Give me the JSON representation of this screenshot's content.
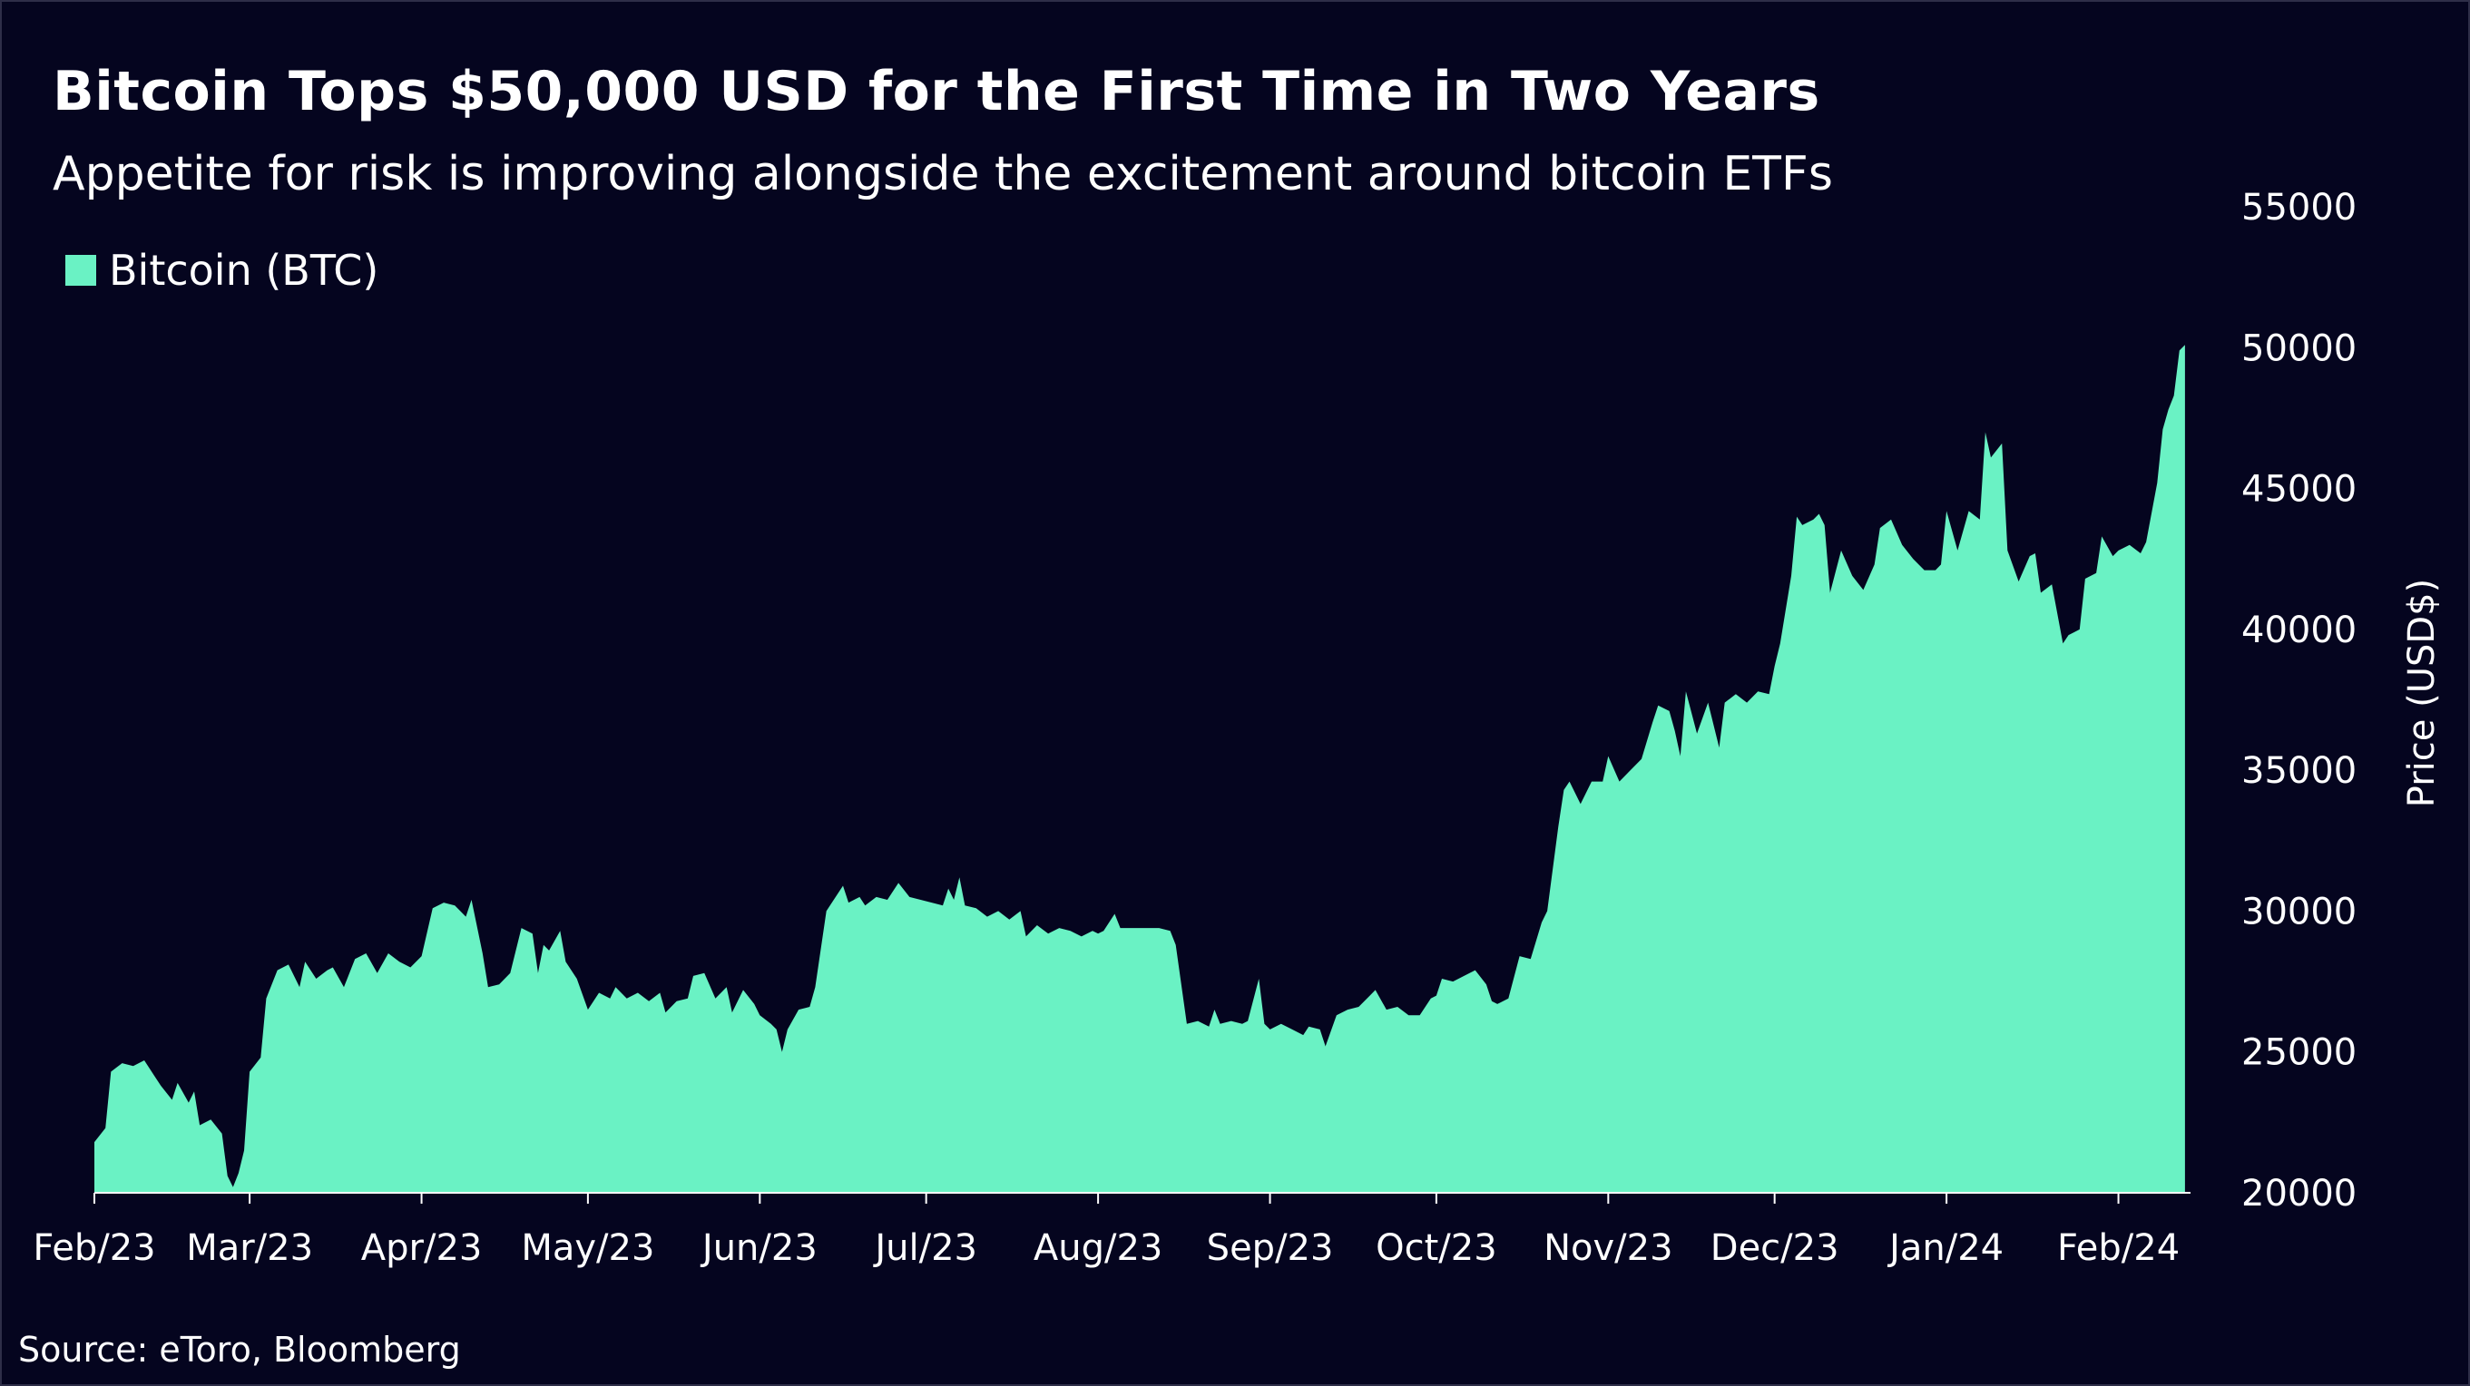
{
  "header": {
    "title": "Bitcoin Tops $50,000 USD for the First Time in Two Years",
    "subtitle": "Appetite for risk is improving alongside the excitement around bitcoin ETFs"
  },
  "footer": {
    "source": "Source: eToro, Bloomberg"
  },
  "colors": {
    "background": "#05051f",
    "area_fill": "#6af2c4",
    "axis": "#ffffff",
    "text": "#ffffff"
  },
  "chart_data": {
    "type": "area",
    "title": "Bitcoin Tops $50,000 USD for the First Time in Two Years",
    "subtitle": "Appetite for risk is improving alongside the excitement around bitcoin ETFs",
    "xlabel": "",
    "ylabel": "Price (USD$)",
    "y_axis_position": "right",
    "ylim": [
      20000,
      55000
    ],
    "y_ticks": [
      20000,
      25000,
      30000,
      35000,
      40000,
      45000,
      50000,
      55000
    ],
    "x_range": [
      "2023-02-01",
      "2024-02-14"
    ],
    "x_ticks": [
      {
        "date": "2023-02-01",
        "label": "Feb/23"
      },
      {
        "date": "2023-03-01",
        "label": "Mar/23"
      },
      {
        "date": "2023-04-01",
        "label": "Apr/23"
      },
      {
        "date": "2023-05-01",
        "label": "May/23"
      },
      {
        "date": "2023-06-01",
        "label": "Jun/23"
      },
      {
        "date": "2023-07-01",
        "label": "Jul/23"
      },
      {
        "date": "2023-08-01",
        "label": "Aug/23"
      },
      {
        "date": "2023-09-01",
        "label": "Sep/23"
      },
      {
        "date": "2023-10-01",
        "label": "Oct/23"
      },
      {
        "date": "2023-11-01",
        "label": "Nov/23"
      },
      {
        "date": "2023-12-01",
        "label": "Dec/23"
      },
      {
        "date": "2024-01-01",
        "label": "Jan/24"
      },
      {
        "date": "2024-02-01",
        "label": "Feb/24"
      }
    ],
    "legend": {
      "position": "top-left",
      "entries": [
        "Bitcoin (BTC)"
      ]
    },
    "grid": false,
    "series": [
      {
        "name": "Bitcoin (BTC)",
        "points": [
          [
            "2023-02-01",
            21800
          ],
          [
            "2023-02-03",
            22300
          ],
          [
            "2023-02-04",
            24300
          ],
          [
            "2023-02-06",
            24600
          ],
          [
            "2023-02-08",
            24500
          ],
          [
            "2023-02-10",
            24700
          ],
          [
            "2023-02-12",
            24100
          ],
          [
            "2023-02-13",
            23800
          ],
          [
            "2023-02-15",
            23300
          ],
          [
            "2023-02-16",
            23900
          ],
          [
            "2023-02-18",
            23200
          ],
          [
            "2023-02-19",
            23600
          ],
          [
            "2023-02-20",
            22400
          ],
          [
            "2023-02-22",
            22600
          ],
          [
            "2023-02-24",
            22100
          ],
          [
            "2023-02-25",
            20600
          ],
          [
            "2023-02-26",
            20200
          ],
          [
            "2023-02-27",
            20700
          ],
          [
            "2023-02-28",
            21500
          ],
          [
            "2023-03-01",
            24300
          ],
          [
            "2023-03-03",
            24800
          ],
          [
            "2023-03-04",
            26900
          ],
          [
            "2023-03-06",
            27900
          ],
          [
            "2023-03-08",
            28100
          ],
          [
            "2023-03-10",
            27300
          ],
          [
            "2023-03-11",
            28200
          ],
          [
            "2023-03-13",
            27600
          ],
          [
            "2023-03-15",
            27900
          ],
          [
            "2023-03-16",
            28000
          ],
          [
            "2023-03-18",
            27300
          ],
          [
            "2023-03-20",
            28300
          ],
          [
            "2023-03-22",
            28500
          ],
          [
            "2023-03-24",
            27800
          ],
          [
            "2023-03-26",
            28500
          ],
          [
            "2023-03-28",
            28200
          ],
          [
            "2023-03-30",
            28000
          ],
          [
            "2023-04-01",
            28400
          ],
          [
            "2023-04-03",
            30100
          ],
          [
            "2023-04-05",
            30300
          ],
          [
            "2023-04-07",
            30200
          ],
          [
            "2023-04-09",
            29800
          ],
          [
            "2023-04-10",
            30400
          ],
          [
            "2023-04-12",
            28500
          ],
          [
            "2023-04-13",
            27300
          ],
          [
            "2023-04-15",
            27400
          ],
          [
            "2023-04-17",
            27800
          ],
          [
            "2023-04-19",
            29400
          ],
          [
            "2023-04-21",
            29200
          ],
          [
            "2023-04-22",
            27800
          ],
          [
            "2023-04-23",
            28800
          ],
          [
            "2023-04-24",
            28600
          ],
          [
            "2023-04-26",
            29300
          ],
          [
            "2023-04-27",
            28200
          ],
          [
            "2023-04-29",
            27600
          ],
          [
            "2023-05-01",
            26500
          ],
          [
            "2023-05-03",
            27100
          ],
          [
            "2023-05-05",
            26900
          ],
          [
            "2023-05-06",
            27300
          ],
          [
            "2023-05-08",
            26900
          ],
          [
            "2023-05-10",
            27100
          ],
          [
            "2023-05-12",
            26800
          ],
          [
            "2023-05-14",
            27100
          ],
          [
            "2023-05-15",
            26400
          ],
          [
            "2023-05-17",
            26800
          ],
          [
            "2023-05-19",
            26900
          ],
          [
            "2023-05-20",
            27700
          ],
          [
            "2023-05-22",
            27800
          ],
          [
            "2023-05-24",
            26900
          ],
          [
            "2023-05-26",
            27300
          ],
          [
            "2023-05-27",
            26400
          ],
          [
            "2023-05-29",
            27200
          ],
          [
            "2023-05-31",
            26700
          ],
          [
            "2023-06-01",
            26300
          ],
          [
            "2023-06-03",
            26000
          ],
          [
            "2023-06-04",
            25800
          ],
          [
            "2023-06-05",
            25000
          ],
          [
            "2023-06-06",
            25800
          ],
          [
            "2023-06-08",
            26500
          ],
          [
            "2023-06-10",
            26600
          ],
          [
            "2023-06-11",
            27300
          ],
          [
            "2023-06-13",
            30000
          ],
          [
            "2023-06-15",
            30600
          ],
          [
            "2023-06-16",
            30900
          ],
          [
            "2023-06-17",
            30300
          ],
          [
            "2023-06-19",
            30500
          ],
          [
            "2023-06-20",
            30200
          ],
          [
            "2023-06-22",
            30500
          ],
          [
            "2023-06-24",
            30400
          ],
          [
            "2023-06-26",
            31000
          ],
          [
            "2023-06-28",
            30500
          ],
          [
            "2023-06-30",
            30400
          ],
          [
            "2023-07-02",
            30300
          ],
          [
            "2023-07-04",
            30200
          ],
          [
            "2023-07-05",
            30800
          ],
          [
            "2023-07-06",
            30400
          ],
          [
            "2023-07-07",
            31200
          ],
          [
            "2023-07-08",
            30200
          ],
          [
            "2023-07-10",
            30100
          ],
          [
            "2023-07-12",
            29800
          ],
          [
            "2023-07-14",
            30000
          ],
          [
            "2023-07-16",
            29700
          ],
          [
            "2023-07-18",
            30000
          ],
          [
            "2023-07-19",
            29100
          ],
          [
            "2023-07-21",
            29500
          ],
          [
            "2023-07-23",
            29200
          ],
          [
            "2023-07-25",
            29400
          ],
          [
            "2023-07-27",
            29300
          ],
          [
            "2023-07-29",
            29100
          ],
          [
            "2023-07-31",
            29300
          ],
          [
            "2023-08-01",
            29200
          ],
          [
            "2023-08-02",
            29300
          ],
          [
            "2023-08-04",
            29900
          ],
          [
            "2023-08-05",
            29400
          ],
          [
            "2023-08-07",
            29400
          ],
          [
            "2023-08-09",
            29400
          ],
          [
            "2023-08-12",
            29400
          ],
          [
            "2023-08-14",
            29300
          ],
          [
            "2023-08-15",
            28800
          ],
          [
            "2023-08-17",
            26000
          ],
          [
            "2023-08-19",
            26100
          ],
          [
            "2023-08-21",
            25900
          ],
          [
            "2023-08-22",
            26500
          ],
          [
            "2023-08-23",
            26000
          ],
          [
            "2023-08-25",
            26100
          ],
          [
            "2023-08-27",
            26000
          ],
          [
            "2023-08-28",
            26100
          ],
          [
            "2023-08-30",
            27600
          ],
          [
            "2023-08-31",
            26000
          ],
          [
            "2023-09-01",
            25800
          ],
          [
            "2023-09-03",
            26000
          ],
          [
            "2023-09-05",
            25800
          ],
          [
            "2023-09-07",
            25600
          ],
          [
            "2023-09-08",
            25900
          ],
          [
            "2023-09-10",
            25800
          ],
          [
            "2023-09-11",
            25200
          ],
          [
            "2023-09-13",
            26300
          ],
          [
            "2023-09-15",
            26500
          ],
          [
            "2023-09-17",
            26600
          ],
          [
            "2023-09-19",
            27000
          ],
          [
            "2023-09-20",
            27200
          ],
          [
            "2023-09-22",
            26500
          ],
          [
            "2023-09-24",
            26600
          ],
          [
            "2023-09-26",
            26300
          ],
          [
            "2023-09-28",
            26300
          ],
          [
            "2023-09-30",
            26900
          ],
          [
            "2023-10-01",
            27000
          ],
          [
            "2023-10-02",
            27600
          ],
          [
            "2023-10-04",
            27500
          ],
          [
            "2023-10-06",
            27700
          ],
          [
            "2023-10-08",
            27900
          ],
          [
            "2023-10-10",
            27400
          ],
          [
            "2023-10-11",
            26800
          ],
          [
            "2023-10-12",
            26700
          ],
          [
            "2023-10-14",
            26900
          ],
          [
            "2023-10-16",
            28400
          ],
          [
            "2023-10-18",
            28300
          ],
          [
            "2023-10-20",
            29600
          ],
          [
            "2023-10-21",
            30000
          ],
          [
            "2023-10-23",
            33000
          ],
          [
            "2023-10-24",
            34300
          ],
          [
            "2023-10-25",
            34600
          ],
          [
            "2023-10-27",
            33800
          ],
          [
            "2023-10-29",
            34600
          ],
          [
            "2023-10-31",
            34600
          ],
          [
            "2023-11-01",
            35500
          ],
          [
            "2023-11-03",
            34600
          ],
          [
            "2023-11-05",
            35000
          ],
          [
            "2023-11-07",
            35400
          ],
          [
            "2023-11-09",
            36700
          ],
          [
            "2023-11-10",
            37300
          ],
          [
            "2023-11-12",
            37100
          ],
          [
            "2023-11-13",
            36400
          ],
          [
            "2023-11-14",
            35500
          ],
          [
            "2023-11-15",
            37800
          ],
          [
            "2023-11-17",
            36300
          ],
          [
            "2023-11-19",
            37400
          ],
          [
            "2023-11-21",
            35800
          ],
          [
            "2023-11-22",
            37400
          ],
          [
            "2023-11-24",
            37700
          ],
          [
            "2023-11-26",
            37400
          ],
          [
            "2023-11-28",
            37800
          ],
          [
            "2023-11-30",
            37700
          ],
          [
            "2023-12-01",
            38700
          ],
          [
            "2023-12-02",
            39500
          ],
          [
            "2023-12-04",
            41900
          ],
          [
            "2023-12-05",
            44000
          ],
          [
            "2023-12-06",
            43700
          ],
          [
            "2023-12-08",
            43900
          ],
          [
            "2023-12-09",
            44100
          ],
          [
            "2023-12-10",
            43700
          ],
          [
            "2023-12-11",
            41300
          ],
          [
            "2023-12-13",
            42800
          ],
          [
            "2023-12-15",
            41900
          ],
          [
            "2023-12-17",
            41400
          ],
          [
            "2023-12-19",
            42300
          ],
          [
            "2023-12-20",
            43600
          ],
          [
            "2023-12-22",
            43900
          ],
          [
            "2023-12-24",
            43000
          ],
          [
            "2023-12-26",
            42500
          ],
          [
            "2023-12-28",
            42100
          ],
          [
            "2023-12-30",
            42100
          ],
          [
            "2023-12-31",
            42300
          ],
          [
            "2024-01-01",
            44200
          ],
          [
            "2024-01-03",
            42800
          ],
          [
            "2024-01-05",
            44200
          ],
          [
            "2024-01-07",
            43900
          ],
          [
            "2024-01-08",
            47000
          ],
          [
            "2024-01-09",
            46100
          ],
          [
            "2024-01-11",
            46600
          ],
          [
            "2024-01-12",
            42800
          ],
          [
            "2024-01-14",
            41700
          ],
          [
            "2024-01-16",
            42600
          ],
          [
            "2024-01-17",
            42700
          ],
          [
            "2024-01-18",
            41300
          ],
          [
            "2024-01-20",
            41600
          ],
          [
            "2024-01-22",
            39500
          ],
          [
            "2024-01-23",
            39800
          ],
          [
            "2024-01-25",
            40000
          ],
          [
            "2024-01-26",
            41800
          ],
          [
            "2024-01-28",
            42000
          ],
          [
            "2024-01-29",
            43300
          ],
          [
            "2024-01-31",
            42600
          ],
          [
            "2024-02-01",
            42800
          ],
          [
            "2024-02-03",
            43000
          ],
          [
            "2024-02-05",
            42700
          ],
          [
            "2024-02-06",
            43100
          ],
          [
            "2024-02-08",
            45200
          ],
          [
            "2024-02-09",
            47100
          ],
          [
            "2024-02-10",
            47800
          ],
          [
            "2024-02-11",
            48300
          ],
          [
            "2024-02-12",
            49900
          ],
          [
            "2024-02-13",
            50100
          ]
        ]
      }
    ]
  }
}
